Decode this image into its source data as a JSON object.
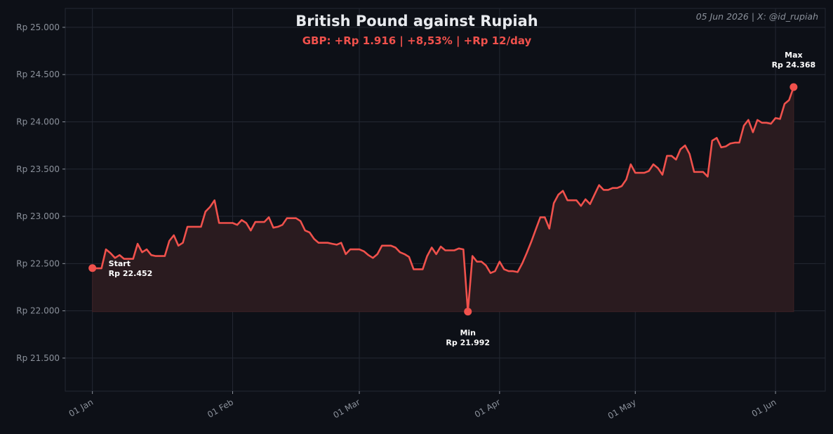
{
  "header": {
    "title": "British Pound against Rupiah",
    "subtitle": "GBP: +Rp 1.916 | +8,53% | +Rp 12/day",
    "corner_note": "05 Jun 2026 | X: @id_rupiah"
  },
  "colors": {
    "background": "#0d1017",
    "plot_background": "#0d1017",
    "line": "#f0514c",
    "fill": "#2a1b1f",
    "grid": "#242833",
    "text": "#e8eaee",
    "muted": "#8b919b"
  },
  "chart_data": {
    "type": "area",
    "title": "British Pound against Rupiah",
    "subtitle": "GBP: +Rp 1.916 | +8,53% | +Rp 12/day",
    "xlabel": "",
    "ylabel": "",
    "grid": true,
    "x_range": [
      "2025-12-26",
      "2026-06-12"
    ],
    "ylim": [
      21150,
      25200
    ],
    "fill_baseline": 21992,
    "y_ticks": [
      21500,
      22000,
      22500,
      23000,
      23500,
      24000,
      24500,
      25000
    ],
    "y_tick_labels": [
      "Rp 21.500",
      "Rp 22.000",
      "Rp 22.500",
      "Rp 23.000",
      "Rp 23.500",
      "Rp 24.000",
      "Rp 24.500",
      "Rp 25.000"
    ],
    "x_ticks": [
      "2026-01-01",
      "2026-02-01",
      "2026-03-01",
      "2026-04-01",
      "2026-05-01",
      "2026-06-01"
    ],
    "x_tick_labels": [
      "01 Jan",
      "01 Feb",
      "01 Mar",
      "01 Apr",
      "01 May",
      "01 Jun"
    ],
    "series": [
      {
        "points": [
          [
            "2026-01-01",
            22452
          ],
          [
            "2026-01-02",
            22450
          ],
          [
            "2026-01-03",
            22450
          ],
          [
            "2026-01-04",
            22650
          ],
          [
            "2026-01-05",
            22610
          ],
          [
            "2026-01-06",
            22560
          ],
          [
            "2026-01-07",
            22590
          ],
          [
            "2026-01-08",
            22550
          ],
          [
            "2026-01-09",
            22550
          ],
          [
            "2026-01-10",
            22550
          ],
          [
            "2026-01-11",
            22710
          ],
          [
            "2026-01-12",
            22620
          ],
          [
            "2026-01-13",
            22650
          ],
          [
            "2026-01-14",
            22590
          ],
          [
            "2026-01-15",
            22580
          ],
          [
            "2026-01-16",
            22580
          ],
          [
            "2026-01-17",
            22580
          ],
          [
            "2026-01-18",
            22740
          ],
          [
            "2026-01-19",
            22800
          ],
          [
            "2026-01-20",
            22690
          ],
          [
            "2026-01-21",
            22720
          ],
          [
            "2026-01-22",
            22890
          ],
          [
            "2026-01-23",
            22890
          ],
          [
            "2026-01-24",
            22890
          ],
          [
            "2026-01-25",
            22890
          ],
          [
            "2026-01-26",
            23050
          ],
          [
            "2026-01-27",
            23100
          ],
          [
            "2026-01-28",
            23170
          ],
          [
            "2026-01-29",
            22930
          ],
          [
            "2026-01-30",
            22930
          ],
          [
            "2026-01-31",
            22930
          ],
          [
            "2026-02-01",
            22930
          ],
          [
            "2026-02-02",
            22910
          ],
          [
            "2026-02-03",
            22960
          ],
          [
            "2026-02-04",
            22930
          ],
          [
            "2026-02-05",
            22850
          ],
          [
            "2026-02-06",
            22940
          ],
          [
            "2026-02-07",
            22940
          ],
          [
            "2026-02-08",
            22940
          ],
          [
            "2026-02-09",
            22990
          ],
          [
            "2026-02-10",
            22880
          ],
          [
            "2026-02-11",
            22890
          ],
          [
            "2026-02-12",
            22910
          ],
          [
            "2026-02-13",
            22980
          ],
          [
            "2026-02-14",
            22980
          ],
          [
            "2026-02-15",
            22980
          ],
          [
            "2026-02-16",
            22950
          ],
          [
            "2026-02-17",
            22850
          ],
          [
            "2026-02-18",
            22830
          ],
          [
            "2026-02-19",
            22760
          ],
          [
            "2026-02-20",
            22720
          ],
          [
            "2026-02-21",
            22720
          ],
          [
            "2026-02-22",
            22720
          ],
          [
            "2026-02-23",
            22710
          ],
          [
            "2026-02-24",
            22700
          ],
          [
            "2026-02-25",
            22720
          ],
          [
            "2026-02-26",
            22600
          ],
          [
            "2026-02-27",
            22650
          ],
          [
            "2026-02-28",
            22650
          ],
          [
            "2026-03-01",
            22650
          ],
          [
            "2026-03-02",
            22630
          ],
          [
            "2026-03-03",
            22590
          ],
          [
            "2026-03-04",
            22560
          ],
          [
            "2026-03-05",
            22600
          ],
          [
            "2026-03-06",
            22690
          ],
          [
            "2026-03-07",
            22690
          ],
          [
            "2026-03-08",
            22690
          ],
          [
            "2026-03-09",
            22670
          ],
          [
            "2026-03-10",
            22620
          ],
          [
            "2026-03-11",
            22600
          ],
          [
            "2026-03-12",
            22570
          ],
          [
            "2026-03-13",
            22440
          ],
          [
            "2026-03-14",
            22440
          ],
          [
            "2026-03-15",
            22440
          ],
          [
            "2026-03-16",
            22580
          ],
          [
            "2026-03-17",
            22670
          ],
          [
            "2026-03-18",
            22600
          ],
          [
            "2026-03-19",
            22680
          ],
          [
            "2026-03-20",
            22640
          ],
          [
            "2026-03-21",
            22640
          ],
          [
            "2026-03-22",
            22640
          ],
          [
            "2026-03-23",
            22660
          ],
          [
            "2026-03-24",
            22650
          ],
          [
            "2026-03-25",
            21992
          ],
          [
            "2026-03-26",
            22580
          ],
          [
            "2026-03-27",
            22520
          ],
          [
            "2026-03-28",
            22520
          ],
          [
            "2026-03-29",
            22480
          ],
          [
            "2026-03-30",
            22400
          ],
          [
            "2026-03-31",
            22420
          ],
          [
            "2026-04-01",
            22520
          ],
          [
            "2026-04-02",
            22440
          ],
          [
            "2026-04-03",
            22420
          ],
          [
            "2026-04-04",
            22420
          ],
          [
            "2026-04-05",
            22410
          ],
          [
            "2026-04-06",
            22500
          ],
          [
            "2026-04-07",
            22610
          ],
          [
            "2026-04-08",
            22730
          ],
          [
            "2026-04-09",
            22860
          ],
          [
            "2026-04-10",
            22990
          ],
          [
            "2026-04-11",
            22990
          ],
          [
            "2026-04-12",
            22870
          ],
          [
            "2026-04-13",
            23140
          ],
          [
            "2026-04-14",
            23230
          ],
          [
            "2026-04-15",
            23270
          ],
          [
            "2026-04-16",
            23170
          ],
          [
            "2026-04-17",
            23170
          ],
          [
            "2026-04-18",
            23170
          ],
          [
            "2026-04-19",
            23110
          ],
          [
            "2026-04-20",
            23180
          ],
          [
            "2026-04-21",
            23130
          ],
          [
            "2026-04-22",
            23230
          ],
          [
            "2026-04-23",
            23330
          ],
          [
            "2026-04-24",
            23280
          ],
          [
            "2026-04-25",
            23280
          ],
          [
            "2026-04-26",
            23300
          ],
          [
            "2026-04-27",
            23300
          ],
          [
            "2026-04-28",
            23320
          ],
          [
            "2026-04-29",
            23390
          ],
          [
            "2026-04-30",
            23550
          ],
          [
            "2026-05-01",
            23460
          ],
          [
            "2026-05-02",
            23460
          ],
          [
            "2026-05-03",
            23460
          ],
          [
            "2026-05-04",
            23480
          ],
          [
            "2026-05-05",
            23550
          ],
          [
            "2026-05-06",
            23510
          ],
          [
            "2026-05-07",
            23440
          ],
          [
            "2026-05-08",
            23640
          ],
          [
            "2026-05-09",
            23640
          ],
          [
            "2026-05-10",
            23600
          ],
          [
            "2026-05-11",
            23710
          ],
          [
            "2026-05-12",
            23750
          ],
          [
            "2026-05-13",
            23660
          ],
          [
            "2026-05-14",
            23470
          ],
          [
            "2026-05-15",
            23470
          ],
          [
            "2026-05-16",
            23470
          ],
          [
            "2026-05-17",
            23420
          ],
          [
            "2026-05-18",
            23800
          ],
          [
            "2026-05-19",
            23830
          ],
          [
            "2026-05-20",
            23730
          ],
          [
            "2026-05-21",
            23740
          ],
          [
            "2026-05-22",
            23770
          ],
          [
            "2026-05-23",
            23780
          ],
          [
            "2026-05-24",
            23780
          ],
          [
            "2026-05-25",
            23960
          ],
          [
            "2026-05-26",
            24020
          ],
          [
            "2026-05-27",
            23890
          ],
          [
            "2026-05-28",
            24020
          ],
          [
            "2026-05-29",
            23990
          ],
          [
            "2026-05-30",
            23990
          ],
          [
            "2026-05-31",
            23980
          ],
          [
            "2026-06-01",
            24040
          ],
          [
            "2026-06-02",
            24030
          ],
          [
            "2026-06-03",
            24190
          ],
          [
            "2026-06-04",
            24230
          ],
          [
            "2026-06-05",
            24368
          ]
        ]
      }
    ],
    "annotations": [
      {
        "key": "start",
        "label": "Start",
        "value_label": "Rp 22.452",
        "x": "2026-01-01",
        "y": 22452
      },
      {
        "key": "min",
        "label": "Min",
        "value_label": "Rp 21.992",
        "x": "2026-03-25",
        "y": 21992
      },
      {
        "key": "max",
        "label": "Max",
        "value_label": "Rp 24.368",
        "x": "2026-06-05",
        "y": 24368
      }
    ]
  }
}
